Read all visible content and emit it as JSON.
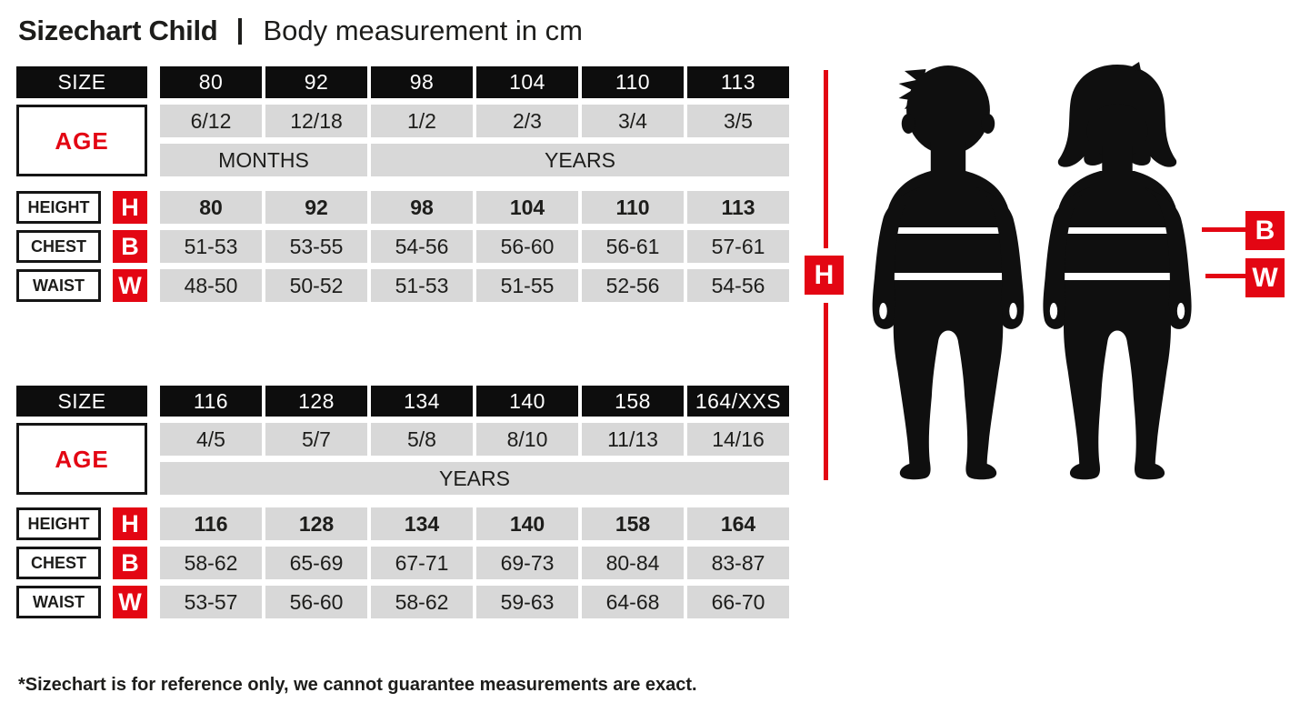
{
  "title": {
    "main": "Sizechart Child",
    "subtitle": "Body measurement in cm"
  },
  "footnote": "*Sizechart is for reference only, we cannot guarantee measurements are exact.",
  "labels": {
    "size": "SIZE",
    "age": "AGE",
    "height": "HEIGHT",
    "chest": "CHEST",
    "waist": "WAIST",
    "h": "H",
    "b": "B",
    "w": "W"
  },
  "colors": {
    "accent_red": "#e30613",
    "header_black": "#0d0d0d",
    "cell_gray": "#d8d8d8",
    "text_dark": "#1d1d1b",
    "silhouette_black": "#0f0f0f"
  },
  "tables": [
    {
      "sizes": [
        "80",
        "92",
        "98",
        "104",
        "110",
        "113"
      ],
      "ages": [
        "6/12",
        "12/18",
        "1/2",
        "2/3",
        "3/4",
        "3/5"
      ],
      "age_units": [
        {
          "label": "MONTHS",
          "span": 2
        },
        {
          "label": "YEARS",
          "span": 4
        }
      ],
      "height": [
        "80",
        "92",
        "98",
        "104",
        "110",
        "113"
      ],
      "chest": [
        "51-53",
        "53-55",
        "54-56",
        "56-60",
        "56-61",
        "57-61"
      ],
      "waist": [
        "48-50",
        "50-52",
        "51-53",
        "51-55",
        "52-56",
        "54-56"
      ]
    },
    {
      "sizes": [
        "116",
        "128",
        "134",
        "140",
        "158",
        "164/XXS"
      ],
      "ages": [
        "4/5",
        "5/7",
        "5/8",
        "8/10",
        "11/13",
        "14/16"
      ],
      "age_units": [
        {
          "label": "YEARS",
          "span": 6
        }
      ],
      "height": [
        "116",
        "128",
        "134",
        "140",
        "158",
        "164"
      ],
      "chest": [
        "58-62",
        "65-69",
        "67-71",
        "69-73",
        "80-84",
        "83-87"
      ],
      "waist": [
        "53-57",
        "56-60",
        "58-62",
        "59-63",
        "64-68",
        "66-70"
      ]
    }
  ],
  "figures": {
    "left": "boy silhouette",
    "right": "girl silhouette",
    "height_marker": "H",
    "chest_marker": "B",
    "waist_marker": "W"
  }
}
